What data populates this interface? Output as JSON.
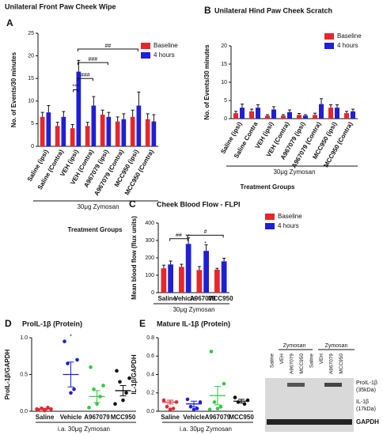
{
  "chart_data": [
    {
      "type": "bar",
      "panel": "A",
      "title": "Unilateral Front Paw Cheek Wipe",
      "ylabel": "No. of Events/30 minutes",
      "categories": [
        "Saline (ipsi)",
        "Saline (Contra)",
        "VEH (ipsi)",
        "VEH (Contra)",
        "A967079 (ipsi)",
        "A967079 (Contra)",
        "MCC950 (ipsi)",
        "MCC950 (Contra)"
      ],
      "series": [
        {
          "name": "Baseline",
          "color": "#e8262a",
          "values": [
            6.5,
            4.5,
            4,
            4.5,
            7,
            5.5,
            6.5,
            6
          ],
          "errors": [
            1,
            0.8,
            0.8,
            0.8,
            1,
            1,
            1.5,
            1.2
          ]
        },
        {
          "name": "4 hours",
          "color": "#1f1fd6",
          "values": [
            7.5,
            6.5,
            16.5,
            9,
            6.5,
            6,
            9,
            5.5
          ],
          "errors": [
            1.5,
            1.2,
            2.5,
            2,
            1,
            1.2,
            3,
            1.5
          ]
        }
      ],
      "ylim": [
        0,
        25
      ],
      "yticks": [
        0,
        5,
        10,
        15,
        20,
        25
      ],
      "group_label": "30μg Zymosan",
      "xlabel": "Treatment Groups",
      "annotations": [
        "***",
        "###",
        "###",
        "##"
      ]
    },
    {
      "type": "bar",
      "panel": "B",
      "title": "Unilateral Hind Paw Cheek Scratch",
      "ylabel": "No. of Events/30 minutes",
      "categories": [
        "Saline (ipsi)",
        "Saline Contra",
        "VEH (ipsi)",
        "VEH (Contra)",
        "A967079 (ipsi)",
        "A967079 (Contra)",
        "MCC950 (ipsi)",
        "MCC950 (Contra)"
      ],
      "series": [
        {
          "name": "Baseline",
          "color": "#e8262a",
          "values": [
            1.5,
            2,
            0.8,
            0.8,
            1,
            1,
            3,
            1.5
          ],
          "errors": [
            0.5,
            0.6,
            0.3,
            0.3,
            0.4,
            0.5,
            0.8,
            0.5
          ]
        },
        {
          "name": "4 hours",
          "color": "#1f1fd6",
          "values": [
            3,
            3,
            2.5,
            1.8,
            0.8,
            4,
            3,
            2
          ],
          "errors": [
            1,
            0.8,
            0.8,
            0.6,
            0.3,
            1.5,
            0.8,
            0.6
          ]
        }
      ],
      "ylim": [
        0,
        20
      ],
      "yticks": [
        0,
        5,
        10,
        15,
        20
      ],
      "group_label": "30μg Zymosan",
      "xlabel": "Treatment Groups"
    },
    {
      "type": "bar",
      "panel": "C",
      "title": "Cheek Blood Flow - FLPI",
      "ylabel": "Mean blood flow (flux units)",
      "categories": [
        "Saline",
        "Vehicle",
        "A967079",
        "MCC950"
      ],
      "series": [
        {
          "name": "Baseline",
          "color": "#e8262a",
          "values": [
            140,
            148,
            130,
            132
          ],
          "errors": [
            18,
            15,
            20,
            8
          ]
        },
        {
          "name": "4 hours",
          "color": "#1f1fd6",
          "values": [
            162,
            280,
            240,
            180
          ],
          "errors": [
            20,
            35,
            35,
            18
          ]
        }
      ],
      "ylim": [
        0,
        400
      ],
      "yticks": [
        0,
        100,
        200,
        300,
        400
      ],
      "group_label": "30μg Zymosan",
      "annotations": [
        "##",
        "#",
        "**",
        "*"
      ]
    },
    {
      "type": "dot",
      "panel": "D",
      "title": "ProIL-1β (Protein)",
      "ylabel": "ProIL-1β/GAPDH",
      "categories": [
        "Saline",
        "Vehicle",
        "A967079",
        "MCC950"
      ],
      "colors": [
        "#e8262a",
        "#1f1fd6",
        "#2ecc40",
        "#111111"
      ],
      "points": [
        [
          0.02,
          0.03,
          0.04,
          0.05,
          0.01,
          0.03
        ],
        [
          0.95,
          0.7,
          0.65,
          0.3,
          0.25
        ],
        [
          0.6,
          0.35,
          0.3,
          0.2,
          0.1,
          0.05
        ],
        [
          0.55,
          0.45,
          0.4,
          0.25,
          0.15,
          0.1
        ]
      ],
      "means": [
        0.03,
        0.5,
        0.2,
        0.28
      ],
      "sems": [
        0.01,
        0.17,
        0.08,
        0.07
      ],
      "ylim": [
        0,
        1
      ],
      "yticks": [
        {
          "value": 0,
          "label": "0.0"
        },
        {
          "value": 0.5,
          "label": "0.5"
        },
        {
          "value": 1,
          "label": "1.0"
        }
      ],
      "xlabel": "i.a. 30μg Zymosan",
      "annotations": [
        "*"
      ]
    },
    {
      "type": "dot",
      "panel": "E",
      "title": "Mature IL-1β (Protein)",
      "ylabel": "IL-1β/GAPDH",
      "categories": [
        "Saline",
        "Vehicle",
        "A967079",
        "MCC950"
      ],
      "colors": [
        "#e8262a",
        "#1f1fd6",
        "#2ecc40",
        "#111111"
      ],
      "points": [
        [
          0.12,
          0.1,
          0.05,
          0.03,
          0.02
        ],
        [
          0.13,
          0.1,
          0.05,
          0.03,
          0.02
        ],
        [
          0.65,
          0.3,
          0.1,
          0.05,
          0.03,
          0.02
        ],
        [
          0.15,
          0.12,
          0.1,
          0.08
        ]
      ],
      "means": [
        0.1,
        0.08,
        0.17,
        0.11
      ],
      "sems": [
        0.02,
        0.03,
        0.1,
        0.02
      ],
      "ylim": [
        0,
        0.8
      ],
      "yticks": [
        {
          "value": 0,
          "label": "0.0"
        },
        {
          "value": 0.2,
          "label": "0.2"
        },
        {
          "value": 0.4,
          "label": "0.4"
        },
        {
          "value": 0.6,
          "label": "0.6"
        },
        {
          "value": 0.8,
          "label": "0.8"
        }
      ],
      "xlabel": "i.a. 30μg Zymosan"
    }
  ],
  "blot": {
    "group_labels": [
      "Zymosan",
      "Zymosan"
    ],
    "lanes": [
      "Saline",
      "VEH",
      "A967079",
      "MCC950",
      "Saline",
      "VEH",
      "A967079",
      "MCC950"
    ],
    "bands": [
      "ProIL-1β",
      "(35kDa)",
      "IL-1β",
      "(17kDa)",
      "GAPDH"
    ]
  }
}
